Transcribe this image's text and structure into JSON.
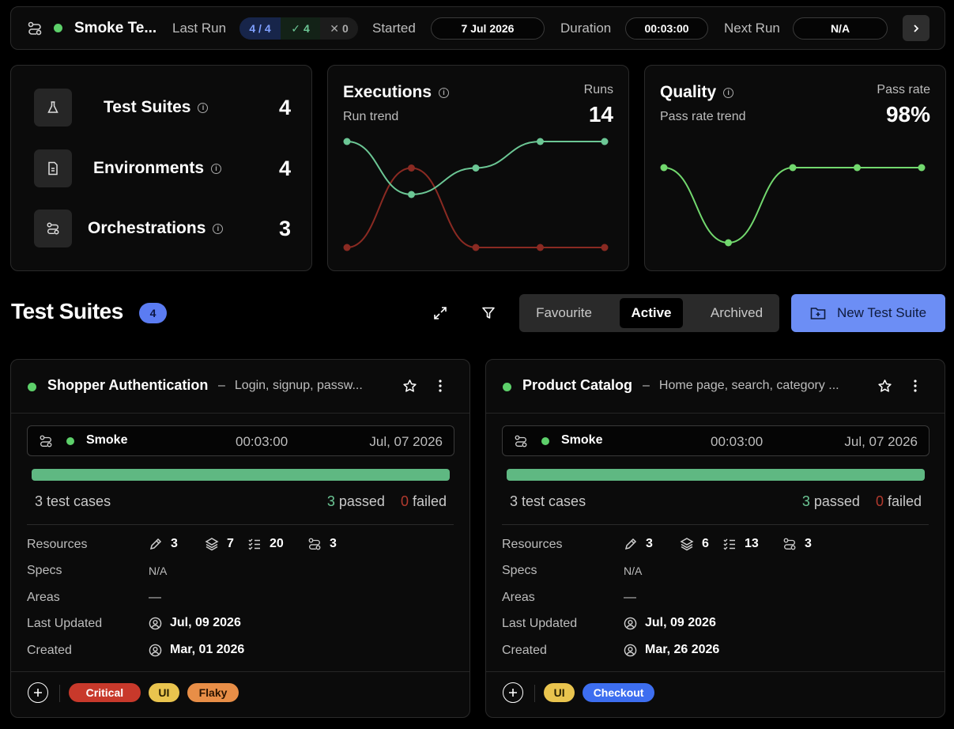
{
  "topbar": {
    "title": "Smoke Te...",
    "last_run_label": "Last Run",
    "run_ratio": "4 / 4",
    "passed": "4",
    "failed": "0",
    "started_label": "Started",
    "started": "7 Jul 2026",
    "duration_label": "Duration",
    "duration": "00:03:00",
    "next_run_label": "Next Run",
    "next_run": "N/A"
  },
  "stats": [
    {
      "label": "Test Suites",
      "value": "4",
      "icon": "flask-icon"
    },
    {
      "label": "Environments",
      "value": "4",
      "icon": "document-icon"
    },
    {
      "label": "Orchestrations",
      "value": "3",
      "icon": "route-icon"
    }
  ],
  "executions": {
    "title": "Executions",
    "subtitle": "Run trend",
    "metric_label": "Runs",
    "metric_value": "14",
    "chart_data": {
      "type": "line",
      "series": [
        {
          "color": "#6cc795",
          "values": [
            4,
            2,
            3,
            4,
            4
          ]
        },
        {
          "color": "#8a2a22",
          "values": [
            0,
            3,
            0,
            0,
            0
          ]
        }
      ]
    }
  },
  "quality": {
    "title": "Quality",
    "subtitle": "Pass rate trend",
    "metric_label": "Pass rate",
    "metric_value": "98%",
    "chart_data": {
      "type": "line",
      "series": [
        {
          "color": "#72d86e",
          "values": [
            100,
            90,
            100,
            100,
            100
          ]
        }
      ]
    }
  },
  "section": {
    "title": "Test Suites",
    "count": "4",
    "tabs": [
      "Favourite",
      "Active",
      "Archived"
    ],
    "active_tab": "Active",
    "new_button": "New Test Suite"
  },
  "cards": [
    {
      "name": "Shopper Authentication",
      "desc": "Login, signup, passw...",
      "run_name": "Smoke",
      "run_duration": "00:03:00",
      "run_date": "Jul, 07 2026",
      "cases_num": "3",
      "cases_text": "test cases",
      "passed_num": "3",
      "passed_text": "passed",
      "failed_num": "0",
      "failed_text": "failed",
      "resources_label": "Resources",
      "resources": [
        "3",
        "7",
        "20",
        "3"
      ],
      "specs_label": "Specs",
      "specs": "N/A",
      "areas_label": "Areas",
      "areas": "—",
      "updated_label": "Last Updated",
      "updated": "Jul, 09 2026",
      "created_label": "Created",
      "created": "Mar, 01 2026",
      "tags": [
        {
          "label": "Critical",
          "color": "#c8392b",
          "text": "#ffffff"
        },
        {
          "label": "UI",
          "color": "#e9c44e",
          "text": "#2a2100"
        },
        {
          "label": "Flaky",
          "color": "#e88e47",
          "text": "#2a1300"
        }
      ]
    },
    {
      "name": "Product Catalog",
      "desc": "Home page, search, category ...",
      "run_name": "Smoke",
      "run_duration": "00:03:00",
      "run_date": "Jul, 07 2026",
      "cases_num": "3",
      "cases_text": "test cases",
      "passed_num": "3",
      "passed_text": "passed",
      "failed_num": "0",
      "failed_text": "failed",
      "resources_label": "Resources",
      "resources": [
        "3",
        "6",
        "13",
        "3"
      ],
      "specs_label": "Specs",
      "specs": "N/A",
      "areas_label": "Areas",
      "areas": "—",
      "updated_label": "Last Updated",
      "updated": "Jul, 09 2026",
      "created_label": "Created",
      "created": "Mar, 26 2026",
      "tags": [
        {
          "label": "UI",
          "color": "#e9c44e",
          "text": "#2a2100"
        },
        {
          "label": "Checkout",
          "color": "#3d6ef0",
          "text": "#ffffff"
        }
      ]
    }
  ]
}
